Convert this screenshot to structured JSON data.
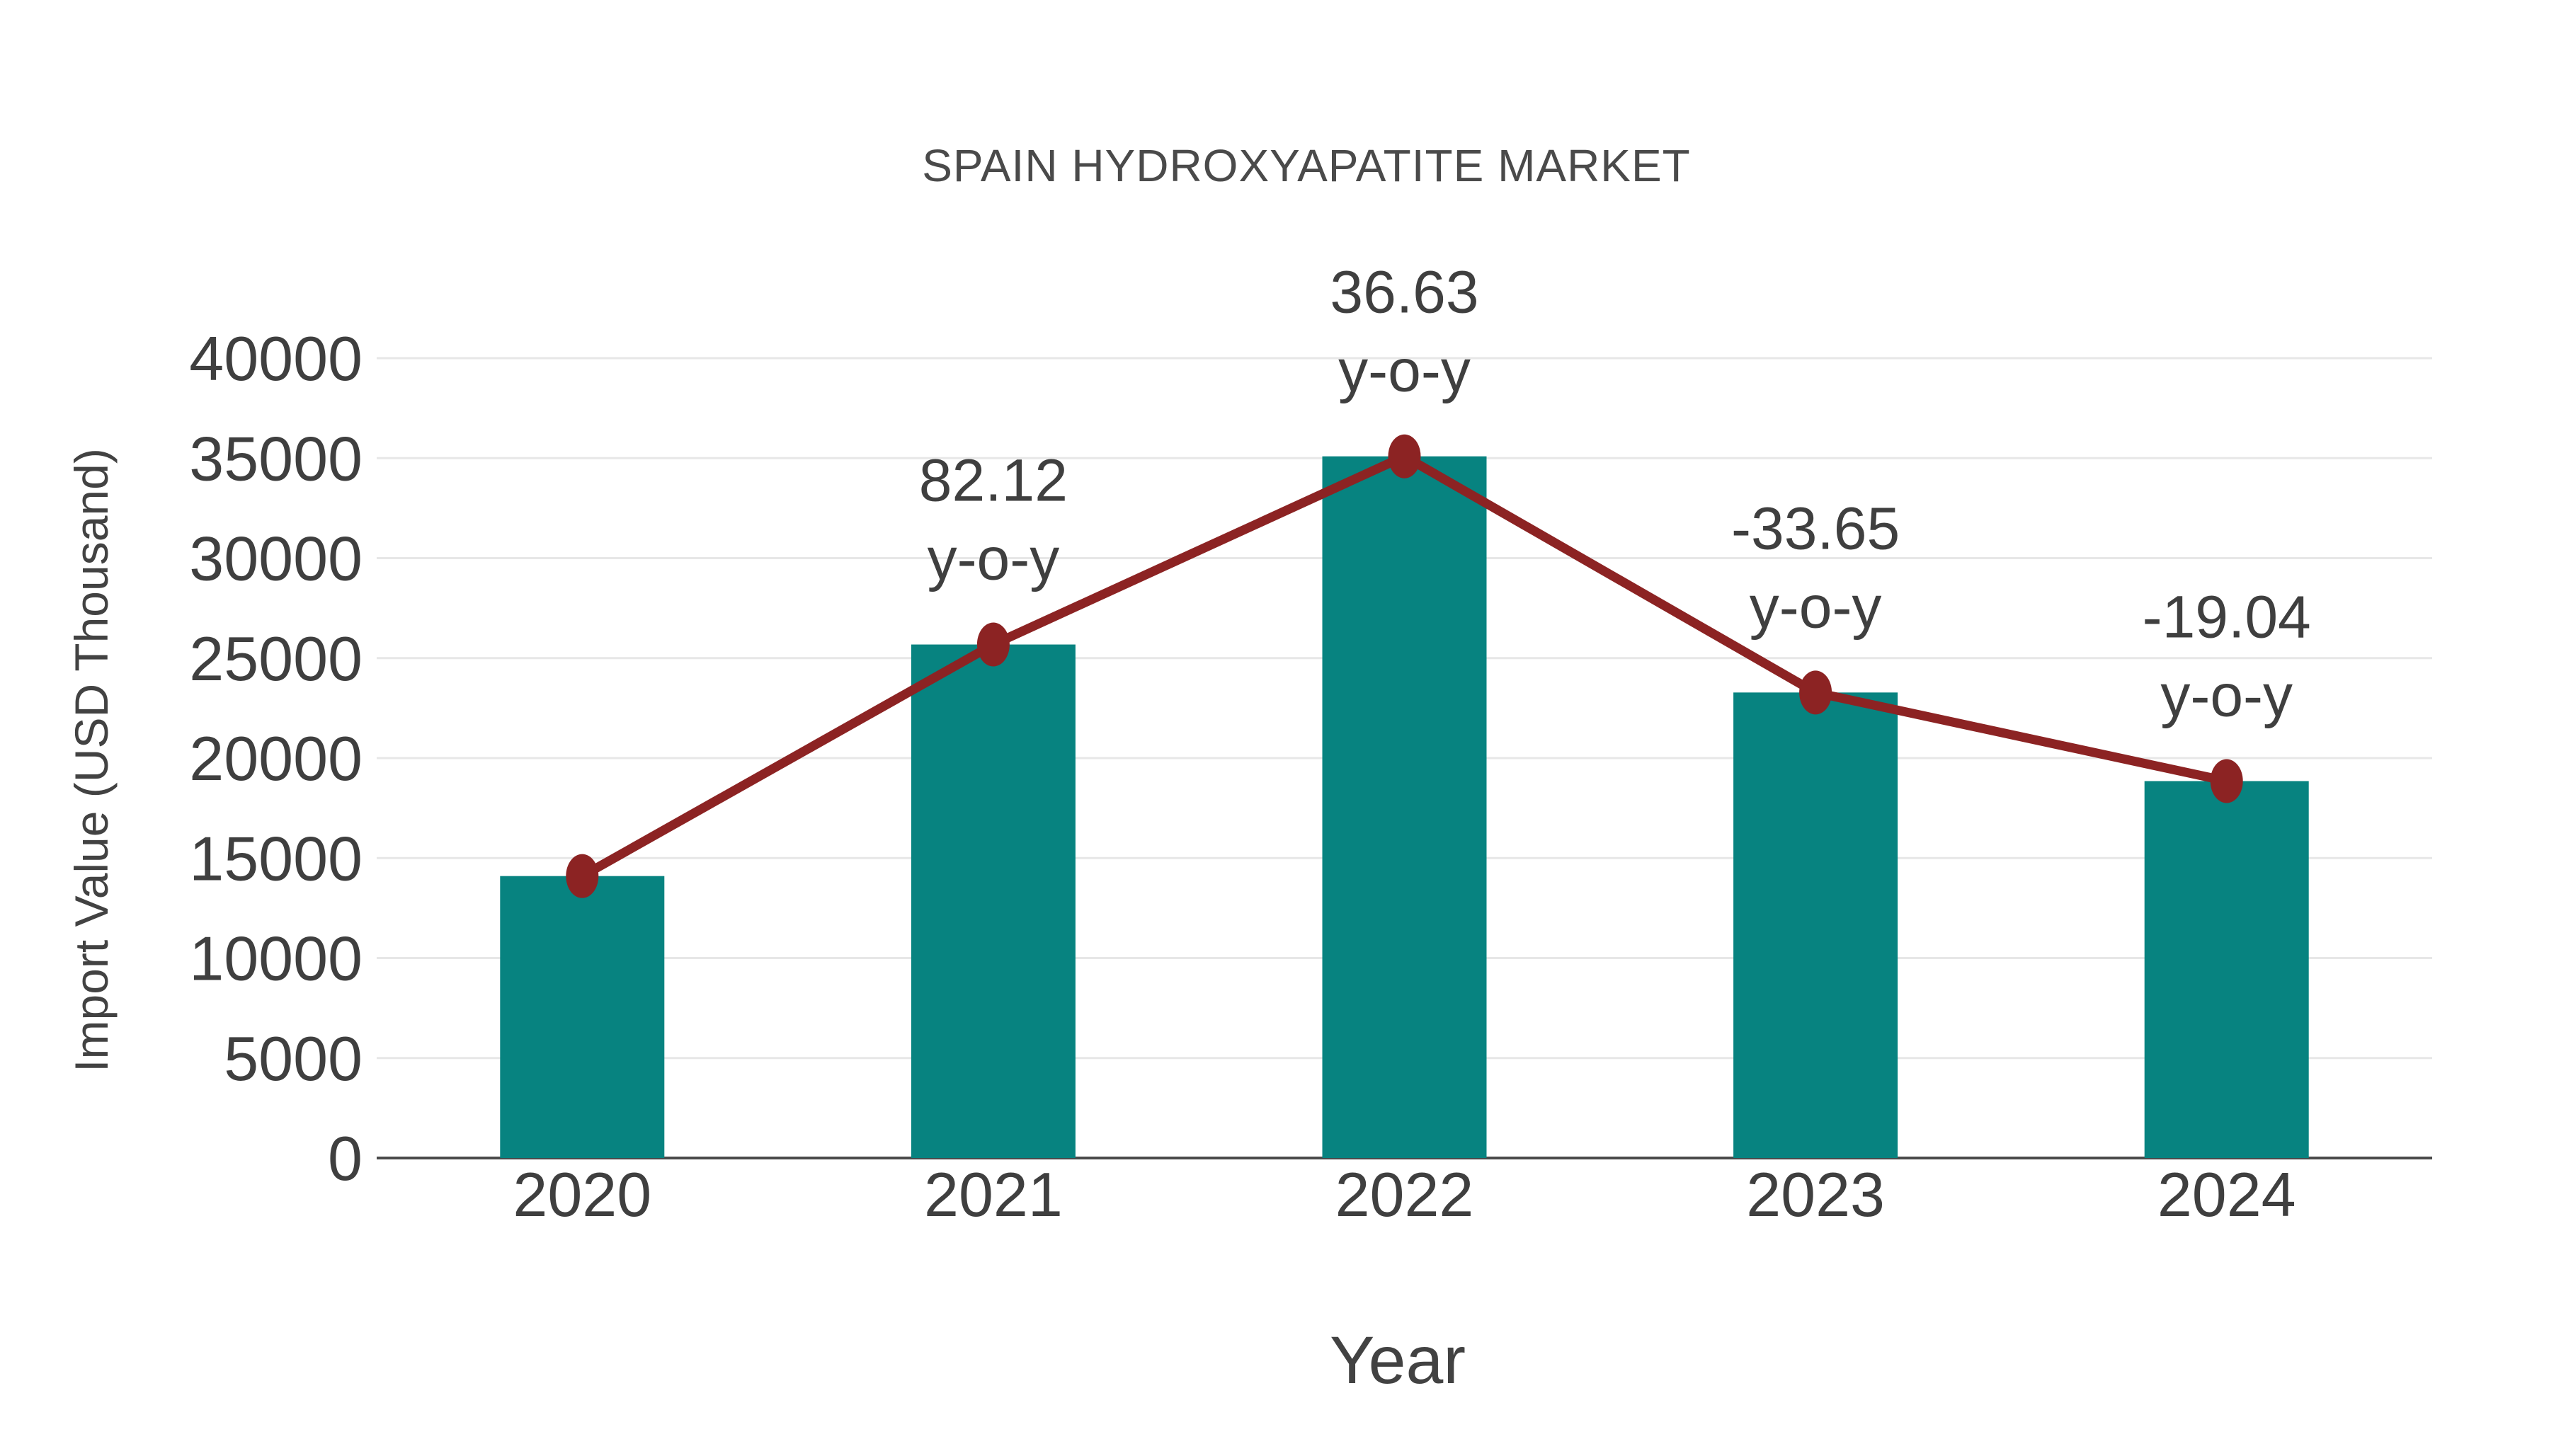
{
  "chart_data": {
    "type": "bar",
    "title": "SPAIN HYDROXYAPATITE MARKET",
    "xlabel": "Year",
    "ylabel": "Import Value (USD Thousand)",
    "categories": [
      "2020",
      "2021",
      "2022",
      "2023",
      "2024"
    ],
    "series": [
      {
        "name": "Import Value bars",
        "type": "bar",
        "values": [
          14100,
          25680,
          35090,
          23280,
          18850
        ]
      },
      {
        "name": "Import Value trend line",
        "type": "line",
        "values": [
          14100,
          25680,
          35090,
          23280,
          18850
        ]
      }
    ],
    "annotations": [
      {
        "category": "2021",
        "lines": [
          "82.12",
          "y-o-y"
        ]
      },
      {
        "category": "2022",
        "lines": [
          "36.63",
          "y-o-y"
        ]
      },
      {
        "category": "2023",
        "lines": [
          "-33.65",
          "y-o-y"
        ]
      },
      {
        "category": "2024",
        "lines": [
          "-19.04",
          "y-o-y"
        ]
      }
    ],
    "ylim": [
      0,
      40000
    ],
    "yticks": [
      0,
      5000,
      10000,
      15000,
      20000,
      25000,
      30000,
      35000,
      40000
    ],
    "grid": "horizontal-only",
    "legend_position": "none",
    "colors": {
      "bar": "#078380",
      "line": "#8c2323",
      "marker": "#8c2323",
      "text": "#3f3f3f",
      "grid": "#e7e7e7",
      "axis": "#4a4a4a",
      "background": "#ffffff"
    }
  }
}
